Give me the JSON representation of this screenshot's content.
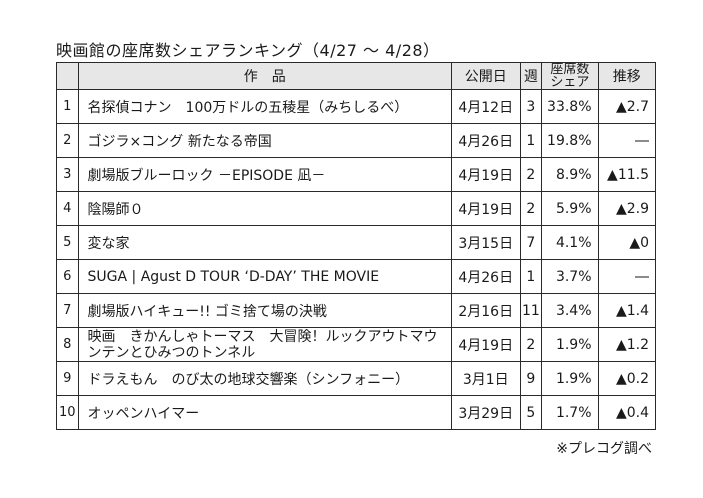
{
  "title": "映画館の座席数シェアランキング（4/27 ～ 4/28）",
  "headers": {
    "title": "作　品",
    "release_date": "公開日",
    "weeks": "週",
    "share_line1": "座席数",
    "share_line2": "シェア",
    "trend": "推移"
  },
  "rows": [
    {
      "rank": "1",
      "title": "名探偵コナン　100万ドルの五稜星（みちしるべ）",
      "release_date": "4月12日",
      "weeks": "3",
      "share": "33.8%",
      "trend": "▲2.7"
    },
    {
      "rank": "2",
      "title": "ゴジラ×コング 新たなる帝国",
      "release_date": "4月26日",
      "weeks": "1",
      "share": "19.8%",
      "trend": "―"
    },
    {
      "rank": "3",
      "title": "劇場版ブルーロック －EPISODE 凪－",
      "release_date": "4月19日",
      "weeks": "2",
      "share": "8.9%",
      "trend": "▲11.5"
    },
    {
      "rank": "4",
      "title": "陰陽師０",
      "release_date": "4月19日",
      "weeks": "2",
      "share": "5.9%",
      "trend": "▲2.9"
    },
    {
      "rank": "5",
      "title": "変な家",
      "release_date": "3月15日",
      "weeks": "7",
      "share": "4.1%",
      "trend": "▲0"
    },
    {
      "rank": "6",
      "title": "SUGA | Agust D TOUR ‘D-DAY’ THE MOVIE",
      "release_date": "4月26日",
      "weeks": "1",
      "share": "3.7%",
      "trend": "―"
    },
    {
      "rank": "7",
      "title": "劇場版ハイキュー!! ゴミ捨て場の決戦",
      "release_date": "2月16日",
      "weeks": "11",
      "share": "3.4%",
      "trend": "▲1.4"
    },
    {
      "rank": "8",
      "title": "映画　きかんしゃトーマス　大冒険！ルックアウトマウンテンとひみつのトンネル",
      "release_date": "4月19日",
      "weeks": "2",
      "share": "1.9%",
      "trend": "▲1.2"
    },
    {
      "rank": "9",
      "title": "ドラえもん　のび太の地球交響楽（シンフォニー）",
      "release_date": "3月1日",
      "weeks": "9",
      "share": "1.9%",
      "trend": "▲0.2"
    },
    {
      "rank": "10",
      "title": "オッペンハイマー",
      "release_date": "3月29日",
      "weeks": "5",
      "share": "1.7%",
      "trend": "▲0.4"
    }
  ],
  "footnote": "※プレコグ調べ"
}
